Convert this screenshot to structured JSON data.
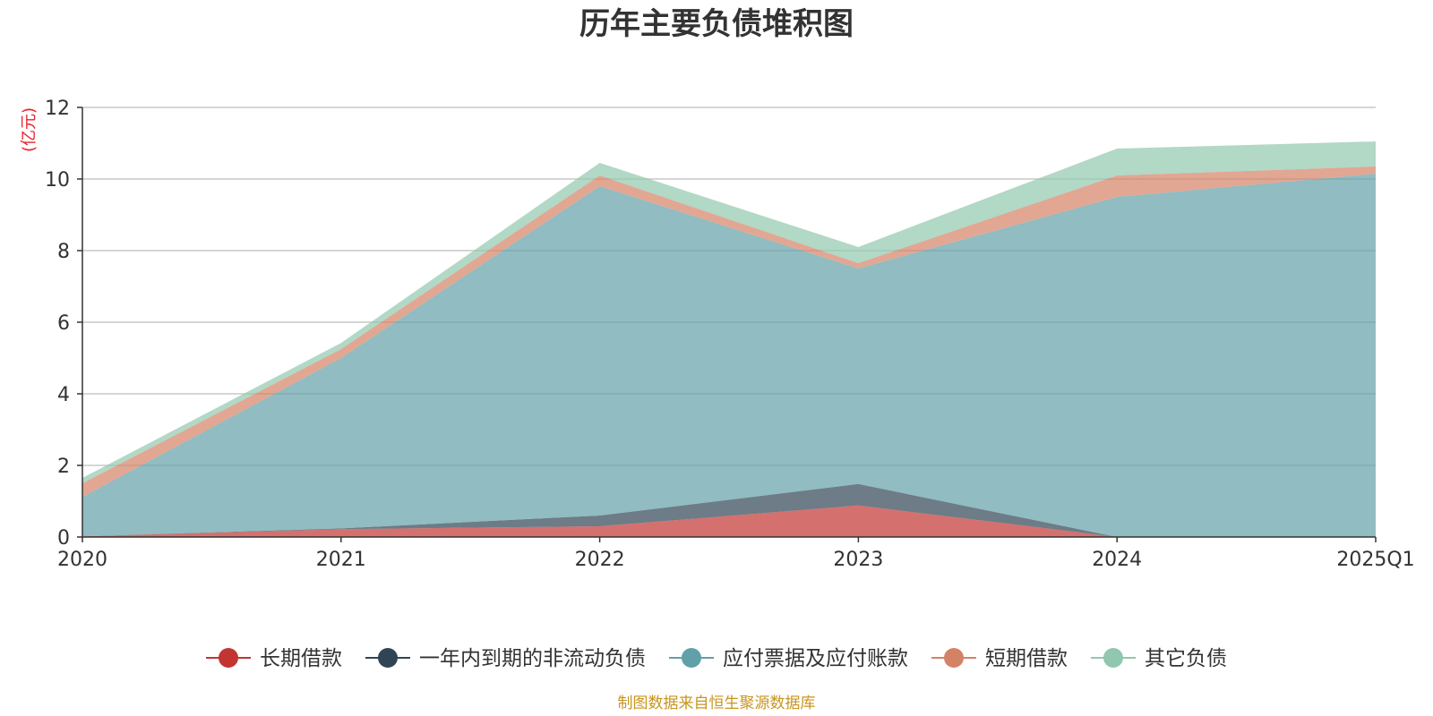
{
  "chart_data": {
    "type": "area",
    "stacked": true,
    "title": "历年主要负债堆积图",
    "unit_label": "(亿元)",
    "source": "制图数据来自恒生聚源数据库",
    "categories": [
      "2020",
      "2021",
      "2022",
      "2023",
      "2024",
      "2025Q1"
    ],
    "ylim": [
      0,
      12
    ],
    "yticks": [
      0,
      2,
      4,
      6,
      8,
      10,
      12
    ],
    "grid": true,
    "legend_position": "bottom",
    "series": [
      {
        "name": "长期借款",
        "color": "#c23531",
        "values": [
          0.02,
          0.22,
          0.3,
          0.88,
          0.0,
          0.0
        ]
      },
      {
        "name": "一年内到期的非流动负债",
        "color": "#2f4554",
        "values": [
          0.0,
          0.02,
          0.3,
          0.6,
          0.0,
          0.0
        ]
      },
      {
        "name": "应付票据及应付账款",
        "color": "#61a0a8",
        "values": [
          1.1,
          4.76,
          9.2,
          6.02,
          9.5,
          10.15
        ]
      },
      {
        "name": "短期借款",
        "color": "#d48265",
        "values": [
          0.38,
          0.25,
          0.3,
          0.15,
          0.6,
          0.2
        ]
      },
      {
        "name": "其它负债",
        "color": "#91c7ae",
        "values": [
          0.15,
          0.17,
          0.35,
          0.45,
          0.75,
          0.7
        ]
      }
    ]
  }
}
